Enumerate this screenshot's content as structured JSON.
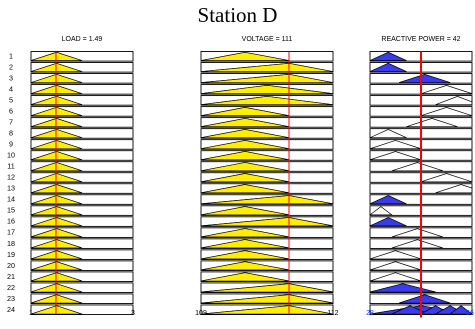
{
  "title": "Station D",
  "colors": {
    "yellow_fill": "#ffee00",
    "blue_fill": "#3a3aee",
    "indicator": "#ff0000",
    "frame": "#000000",
    "blue_text": "#1a3cff"
  },
  "panels": [
    {
      "label": "LOAD = 1.49",
      "color": "yellow",
      "range": [
        1,
        3
      ],
      "tick_labels": [
        "1",
        "3"
      ],
      "value": 1.49,
      "shapes": [
        [
          1.0,
          1.5,
          2.0
        ],
        [
          1.0,
          1.5,
          2.0
        ],
        [
          1.0,
          1.5,
          2.0
        ],
        [
          1.0,
          1.5,
          2.0
        ],
        [
          1.0,
          1.5,
          2.0
        ],
        [
          1.0,
          1.5,
          2.0
        ],
        [
          1.0,
          1.5,
          2.0
        ],
        [
          1.0,
          1.5,
          2.0
        ],
        [
          1.0,
          1.5,
          2.0
        ],
        [
          1.0,
          1.5,
          2.0
        ],
        [
          1.0,
          1.5,
          2.0
        ],
        [
          1.0,
          1.5,
          2.0
        ],
        [
          1.0,
          1.5,
          2.0
        ],
        [
          1.0,
          1.5,
          2.0
        ],
        [
          1.0,
          1.5,
          2.0
        ],
        [
          1.0,
          1.5,
          2.0
        ],
        [
          1.0,
          1.5,
          2.0
        ],
        [
          1.0,
          1.5,
          2.0
        ],
        [
          1.0,
          1.5,
          2.0
        ],
        [
          1.0,
          1.5,
          2.0
        ],
        [
          1.0,
          1.5,
          2.0
        ],
        [
          1.0,
          1.5,
          2.0
        ],
        [
          1.0,
          1.5,
          2.0
        ],
        [
          1.0,
          1.5,
          2.0
        ]
      ]
    },
    {
      "label": "VOLTAGE = 111",
      "color": "yellow",
      "range": [
        109,
        112
      ],
      "tick_labels": [
        "109",
        "112"
      ],
      "value": 111,
      "shapes": [
        [
          109.0,
          110.0,
          111.0
        ],
        [
          109.0,
          111.0,
          112.0
        ],
        [
          109.0,
          111.0,
          112.0
        ],
        [
          109.0,
          110.5,
          112.0
        ],
        [
          109.0,
          110.5,
          112.0
        ],
        [
          109.0,
          110.0,
          111.0
        ],
        [
          109.0,
          110.0,
          111.0
        ],
        [
          109.0,
          110.0,
          111.0
        ],
        [
          109.0,
          110.0,
          111.0
        ],
        [
          109.0,
          110.0,
          111.0
        ],
        [
          109.0,
          110.0,
          111.0
        ],
        [
          109.0,
          110.0,
          111.0
        ],
        [
          109.0,
          110.0,
          111.0
        ],
        [
          109.0,
          111.0,
          112.0
        ],
        [
          109.0,
          110.0,
          111.0
        ],
        [
          109.0,
          111.0,
          112.0
        ],
        [
          109.0,
          110.0,
          111.0
        ],
        [
          109.0,
          110.0,
          111.0
        ],
        [
          109.0,
          110.0,
          111.0
        ],
        [
          109.0,
          110.0,
          111.0
        ],
        [
          109.0,
          110.0,
          111.0
        ],
        [
          109.0,
          111.0,
          112.0
        ],
        [
          109.0,
          111.0,
          112.0
        ],
        [
          109.0,
          111.0,
          112.0
        ]
      ]
    },
    {
      "label": "REACTIVE POWER = 42",
      "color": "blue",
      "range": [
        28,
        56
      ],
      "tick_labels": [
        "28",
        "56"
      ],
      "value": 42,
      "shapes": [
        [
          28,
          33,
          38
        ],
        [
          28,
          33,
          38
        ],
        [
          36,
          43,
          50
        ],
        [
          42,
          49,
          56
        ],
        [
          46,
          52,
          58
        ],
        [
          42,
          49,
          56
        ],
        [
          38,
          45,
          52
        ],
        [
          28,
          33,
          38
        ],
        [
          28,
          35,
          42
        ],
        [
          28,
          35,
          42
        ],
        [
          34,
          41,
          48
        ],
        [
          42,
          49,
          56
        ],
        [
          46,
          53,
          60
        ],
        [
          28,
          33,
          38
        ],
        [
          28,
          31,
          34
        ],
        [
          28,
          33,
          38
        ],
        [
          34,
          41,
          48
        ],
        [
          34,
          41,
          48
        ],
        [
          28,
          35,
          42
        ],
        [
          28,
          35,
          42
        ],
        [
          28,
          35,
          42
        ],
        [
          28,
          37,
          46
        ],
        [
          36,
          43,
          50
        ],
        [
          28,
          42,
          56
        ]
      ],
      "extra_last": [
        [
          34,
          39,
          44
        ],
        [
          42,
          46,
          50
        ],
        [
          46,
          50,
          54
        ],
        [
          50,
          53,
          56
        ]
      ]
    }
  ],
  "row_labels": [
    "1",
    "2",
    "3",
    "4",
    "5",
    "6",
    "7",
    "8",
    "9",
    "10",
    "11",
    "12",
    "13",
    "14",
    "15",
    "16",
    "17",
    "18",
    "19",
    "20",
    "21",
    "22",
    "23",
    "24"
  ]
}
